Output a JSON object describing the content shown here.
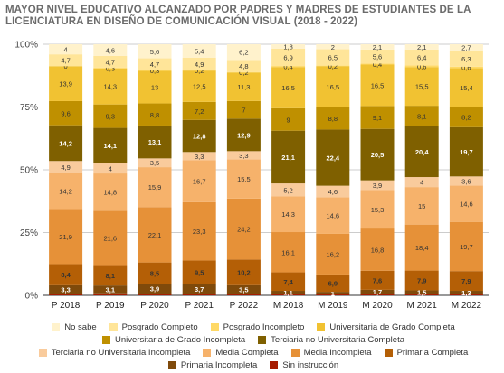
{
  "chart_data": {
    "type": "bar",
    "stacked": true,
    "percent": true,
    "title": "MAYOR NIVEL EDUCATIVO ALCANZADO POR PADRES Y MADRES DE ESTUDIANTES DE LA LICENCIATURA EN DISEÑO DE COMUNICACIÓN VISUAL (2018 - 2022)",
    "categories": [
      "P 2018",
      "P 2019",
      "P 2020",
      "P 2021",
      "P 2022",
      "M 2018",
      "M 2019",
      "M 2020",
      "M 2021",
      "M 2022"
    ],
    "ylim": [
      0,
      100
    ],
    "yticks": [
      "0%",
      "25%",
      "50%",
      "75%",
      "100%"
    ],
    "grid": true,
    "legend_position": "bottom",
    "series": [
      {
        "name": "Sin instrucción",
        "color": "#a61c00",
        "values": [
          0.7,
          0.8,
          0.7,
          0.7,
          0.5,
          0.7,
          0.4,
          0.5,
          0.5,
          0.5
        ]
      },
      {
        "name": "Primaria Incompleta",
        "color": "#7f4a0b",
        "values": [
          3.3,
          3.1,
          3.9,
          3.7,
          3.5,
          1.1,
          1,
          1.7,
          1.5,
          1.3
        ]
      },
      {
        "name": "Primaria Completa",
        "color": "#b45f06",
        "values": [
          8.4,
          8.1,
          8.5,
          9.5,
          10.2,
          7.4,
          6.9,
          7.6,
          7.9,
          7.9
        ]
      },
      {
        "name": "Media Incompleta",
        "color": "#e69138",
        "values": [
          21.9,
          21.6,
          22.1,
          23.3,
          24.2,
          16.1,
          16.2,
          16.8,
          18.4,
          19.7
        ]
      },
      {
        "name": "Media Completa",
        "color": "#f6b26b",
        "values": [
          14.2,
          14.8,
          15.9,
          16.7,
          15.5,
          14.3,
          14.6,
          15.3,
          15,
          14.6
        ]
      },
      {
        "name": "Terciaria no Universitaria Incompleta",
        "color": "#f9cb9c",
        "values": [
          4.9,
          4,
          3.5,
          3.3,
          3.3,
          5.2,
          4.6,
          3.9,
          4,
          3.6
        ]
      },
      {
        "name": "Terciaria no Universitaria Completa",
        "color": "#7f6000",
        "values": [
          14.2,
          14.1,
          13.1,
          12.8,
          12.9,
          21.1,
          22.4,
          20.5,
          20.4,
          19.7
        ]
      },
      {
        "name": "Universitaria de Grado Incompleta",
        "color": "#bf9000",
        "values": [
          9.6,
          9.3,
          8.8,
          7.2,
          7,
          9,
          8.8,
          9.1,
          8.1,
          8.2
        ]
      },
      {
        "name": "Universitaria de Grado Completa",
        "color": "#f1c232",
        "values": [
          13.9,
          14.3,
          13,
          12.5,
          11.3,
          16.5,
          16.5,
          16.5,
          15.5,
          15.4
        ]
      },
      {
        "name": "Posgrado Incompleto",
        "color": "#ffd966",
        "values": [
          0,
          0.3,
          0.3,
          0.2,
          0.2,
          0.4,
          0.2,
          0.4,
          0.6,
          0.6
        ]
      },
      {
        "name": "Posgrado Completo",
        "color": "#ffe599",
        "values": [
          4.7,
          4.7,
          4.7,
          4.9,
          4.8,
          6.9,
          6.5,
          5.6,
          6.4,
          6.3
        ]
      },
      {
        "name": "No sabe",
        "color": "#fff2cc",
        "values": [
          4,
          4.6,
          5.6,
          5.4,
          6.2,
          1.8,
          2,
          2.1,
          2.1,
          2.7
        ]
      }
    ],
    "data_labels": [
      [
        "",
        "3,3",
        "8,4",
        "21,9",
        "14,2",
        "4,9",
        "14,2",
        "9,6",
        "13,9",
        "0",
        "4,7",
        "4"
      ],
      [
        "",
        "3,1",
        "8,1",
        "21,6",
        "14,8",
        "4",
        "14,1",
        "9,3",
        "14,3",
        "0,3",
        "4,7",
        "4,6"
      ],
      [
        "",
        "3,9",
        "8,5",
        "22,1",
        "15,9",
        "3,5",
        "13,1",
        "8,8",
        "13",
        "0,3",
        "4,7",
        "5,6"
      ],
      [
        "",
        "3,7",
        "9,5",
        "23,3",
        "16,7",
        "3,3",
        "12,8",
        "7,2",
        "12,5",
        "0,2",
        "4,9",
        "5,4"
      ],
      [
        "",
        "3,5",
        "10,2",
        "24,2",
        "15,5",
        "3,3",
        "12,9",
        "7",
        "11,3",
        "0,2",
        "4,8",
        "6,2"
      ],
      [
        "",
        "1,1",
        "7,4",
        "16,1",
        "14,3",
        "5,2",
        "21,1",
        "9",
        "16,5",
        "0,4",
        "6,9",
        "1,8"
      ],
      [
        "",
        "1",
        "6,9",
        "16,2",
        "14,6",
        "4,6",
        "22,4",
        "8,8",
        "16,5",
        "0,2",
        "6,5",
        "2"
      ],
      [
        "",
        "1,7",
        "7,6",
        "16,8",
        "15,3",
        "3,9",
        "20,5",
        "9,1",
        "16,5",
        "0,4",
        "5,6",
        "2,1"
      ],
      [
        "",
        "1,5",
        "7,9",
        "18,4",
        "15",
        "4",
        "20,4",
        "8,1",
        "15,5",
        "0,6",
        "6,4",
        "2,1"
      ],
      [
        "",
        "1,3",
        "7,9",
        "19,7",
        "14,6",
        "3,6",
        "19,7",
        "8,2",
        "15,4",
        "0,6",
        "6,3",
        "2,7"
      ]
    ],
    "legend_rows": [
      [
        11,
        10,
        9,
        8
      ],
      [
        7,
        6
      ],
      [
        5,
        4,
        3,
        2
      ],
      [
        1,
        0
      ]
    ]
  }
}
